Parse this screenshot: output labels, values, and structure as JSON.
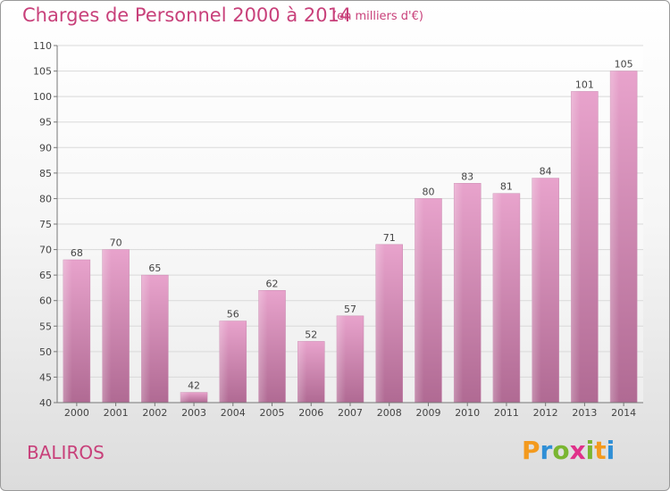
{
  "header": {
    "title": "Charges de Personnel 2000 à 2014",
    "subtitle": "(en milliers d'€)"
  },
  "footer": {
    "commune": "BALIROS",
    "logo": {
      "text": "Proxiti",
      "colors": [
        "#f39a1e",
        "#2f8fd6",
        "#7ab631",
        "#e0318a"
      ]
    }
  },
  "colors": {
    "accent": "#c8407a",
    "bar_top": "#e8a3cc",
    "bar_bottom": "#b06a93",
    "grid": "#d9d9d9"
  },
  "chart_data": {
    "type": "bar",
    "title": "Charges de Personnel 2000 à 2014",
    "subtitle": "(en milliers d'€)",
    "categories": [
      "2000",
      "2001",
      "2002",
      "2003",
      "2004",
      "2005",
      "2006",
      "2007",
      "2008",
      "2009",
      "2010",
      "2011",
      "2012",
      "2013",
      "2014"
    ],
    "values": [
      68,
      70,
      65,
      42,
      56,
      62,
      52,
      57,
      71,
      80,
      83,
      81,
      84,
      101,
      105
    ],
    "ylim": [
      40,
      110
    ],
    "yticks": [
      40,
      45,
      50,
      55,
      60,
      65,
      70,
      75,
      80,
      85,
      90,
      95,
      100,
      105,
      110
    ],
    "grid": true,
    "data_labels": true
  }
}
